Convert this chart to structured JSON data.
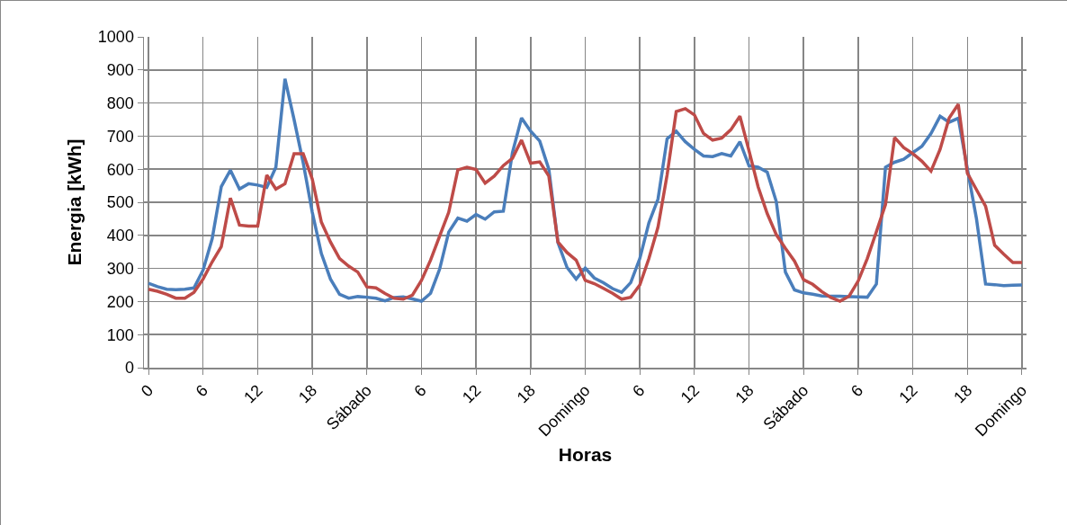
{
  "chart_data": {
    "type": "line",
    "xlabel": "Horas",
    "ylabel": "Energia [kWh]",
    "categories": [
      "0",
      null,
      null,
      null,
      null,
      null,
      "6",
      null,
      null,
      null,
      null,
      null,
      "12",
      null,
      null,
      null,
      null,
      null,
      "18",
      null,
      null,
      null,
      null,
      null,
      "Sábado",
      null,
      null,
      null,
      null,
      null,
      "6",
      null,
      null,
      null,
      null,
      null,
      "12",
      null,
      null,
      null,
      null,
      null,
      "18",
      null,
      null,
      null,
      null,
      null,
      "Domingo",
      null,
      null,
      null,
      null,
      null,
      "6",
      null,
      null,
      null,
      null,
      null,
      "12",
      null,
      null,
      null,
      null,
      null,
      "18",
      null,
      null,
      null,
      null,
      null,
      "Sábado",
      null,
      null,
      null,
      null,
      null,
      "6",
      null,
      null,
      null,
      null,
      null,
      "12",
      null,
      null,
      null,
      null,
      null,
      "18",
      null,
      null,
      null,
      null,
      null,
      "Domingo"
    ],
    "series": [
      {
        "color": "#4a7ebb",
        "values": [
          255,
          245,
          237,
          236,
          237,
          241,
          295,
          390,
          547,
          597,
          540,
          556,
          552,
          545,
          606,
          873,
          750,
          620,
          470,
          345,
          268,
          222,
          210,
          215,
          213,
          210,
          202,
          212,
          214,
          208,
          201,
          225,
          298,
          410,
          452,
          443,
          463,
          449,
          471,
          473,
          650,
          755,
          715,
          685,
          600,
          378,
          303,
          268,
          301,
          271,
          257,
          239,
          228,
          257,
          330,
          438,
          510,
          692,
          715,
          683,
          660,
          640,
          638,
          647,
          640,
          683,
          610,
          606,
          591,
          502,
          289,
          235,
          226,
          222,
          217,
          216,
          216,
          215,
          214,
          213,
          253,
          606,
          621,
          630,
          650,
          669,
          708,
          760,
          742,
          754,
          601,
          450,
          253,
          251,
          248,
          249,
          250
        ]
      },
      {
        "color": "#be4b48",
        "values": [
          237,
          231,
          222,
          210,
          210,
          228,
          268,
          320,
          366,
          513,
          431,
          428,
          428,
          582,
          540,
          556,
          647,
          647,
          570,
          440,
          380,
          330,
          307,
          289,
          244,
          241,
          224,
          210,
          207,
          219,
          264,
          325,
          398,
          470,
          598,
          606,
          599,
          558,
          579,
          611,
          633,
          688,
          618,
          622,
          579,
          380,
          348,
          325,
          264,
          254,
          240,
          225,
          207,
          213,
          250,
          330,
          425,
          583,
          774,
          783,
          764,
          708,
          688,
          694,
          719,
          760,
          656,
          547,
          466,
          402,
          361,
          322,
          266,
          252,
          230,
          212,
          201,
          216,
          262,
          330,
          411,
          493,
          696,
          665,
          647,
          624,
          594,
          660,
          755,
          796,
          588,
          538,
          488,
          370,
          343,
          318,
          318
        ]
      }
    ],
    "ylim": [
      0,
      1000
    ],
    "yticks": [
      0,
      100,
      200,
      300,
      400,
      500,
      600,
      700,
      800,
      900,
      1000
    ],
    "grid": true,
    "legend": false,
    "marker": "none",
    "line_style": "solid"
  }
}
